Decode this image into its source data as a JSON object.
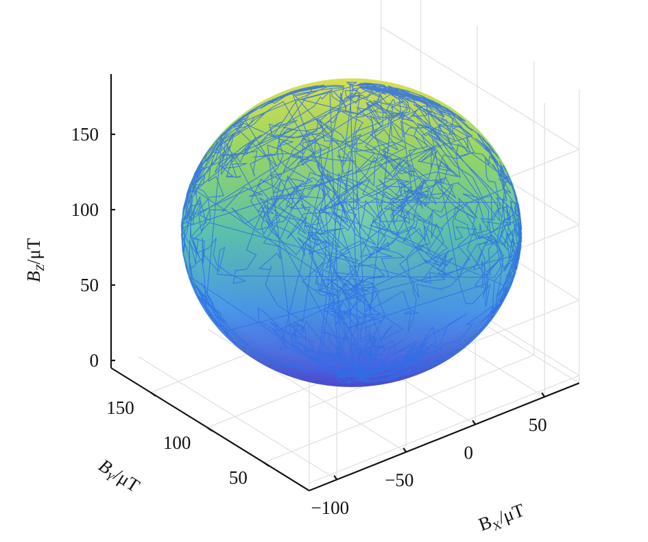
{
  "chart_data": {
    "type": "scatter",
    "subtype": "3d-surface-with-trajectory",
    "title": "",
    "xlabel": {
      "main": "B",
      "sub": "X",
      "unit": "/μT"
    },
    "ylabel": {
      "main": "B",
      "sub": "Y",
      "unit": "/μT"
    },
    "zlabel": {
      "main": "B",
      "sub": "Z",
      "unit": "/μT"
    },
    "x_ticks": [
      "−100",
      "−50",
      "0",
      "50"
    ],
    "y_ticks": [
      "50",
      "100",
      "150"
    ],
    "z_ticks": [
      "0",
      "50",
      "100",
      "150"
    ],
    "xlim": [
      -120,
      75
    ],
    "ylim": [
      10,
      185
    ],
    "zlim": [
      -5,
      190
    ],
    "grid": true,
    "legend": "none",
    "sphere": {
      "center": {
        "x": -20,
        "y": 95,
        "z": 90
      },
      "radius": 85,
      "colormap": [
        "#4040d8",
        "#3a8ee8",
        "#4dc0a8",
        "#8ed65a",
        "#d8e040"
      ]
    },
    "trajectory": {
      "color": "#2e6fe6",
      "description_points": "random walk of measured field samples lying on the sphere surface"
    }
  }
}
